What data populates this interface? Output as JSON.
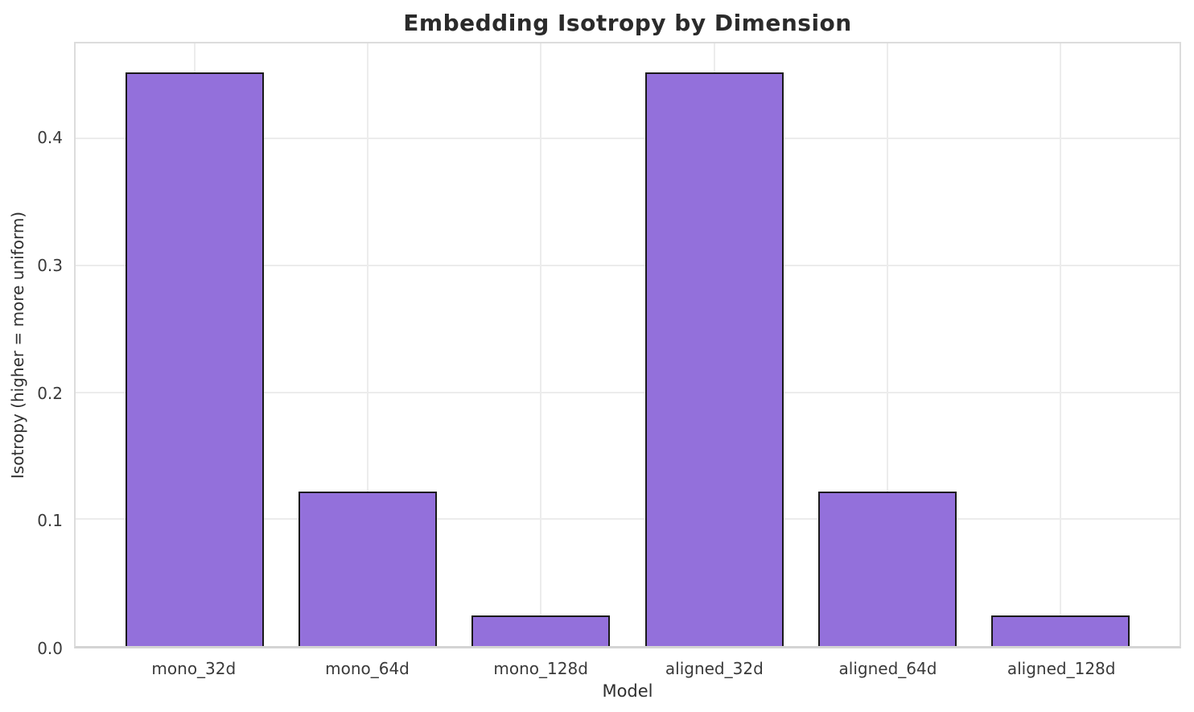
{
  "chart_data": {
    "type": "bar",
    "title": "Embedding Isotropy by Dimension",
    "xlabel": "Model",
    "ylabel": "Isotropy (higher = more uniform)",
    "categories": [
      "mono_32d",
      "mono_64d",
      "mono_128d",
      "aligned_32d",
      "aligned_64d",
      "aligned_128d"
    ],
    "values": [
      0.452,
      0.122,
      0.024,
      0.452,
      0.122,
      0.024
    ],
    "ylim": [
      0,
      0.475
    ],
    "yticks": [
      "0.0",
      "0.1",
      "0.2",
      "0.3",
      "0.4"
    ],
    "ytick_values": [
      0.0,
      0.1,
      0.2,
      0.3,
      0.4
    ],
    "grid": true,
    "legend": "none",
    "bar_width_fraction": 0.8,
    "colors": {
      "bar_fill": "#9370DB",
      "bar_edge": "#1a1a1a",
      "grid": "#ececec",
      "spine": "#dcdcdc",
      "text": "#2f2f2f",
      "title_text": "#2b2b2b",
      "background": "#ffffff"
    }
  }
}
